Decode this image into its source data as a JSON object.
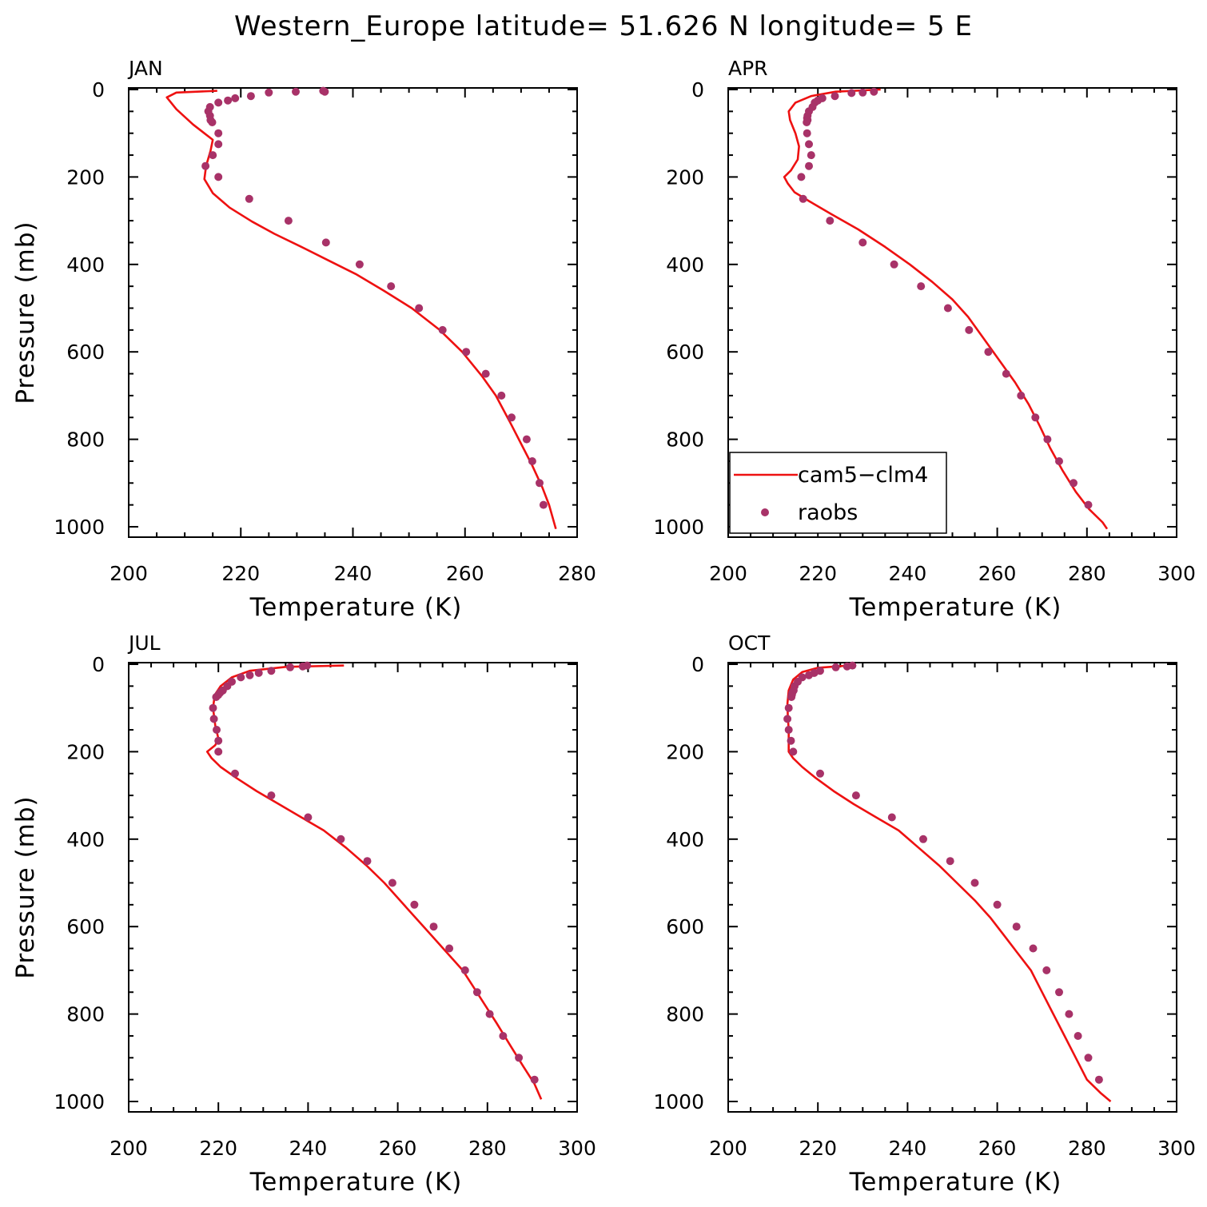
{
  "title": "Western_Europe  latitude= 51.626 N longitude= 5 E",
  "colors": {
    "model": "#ee1111",
    "obs": "#a83268",
    "axes": "#000000"
  },
  "legend": {
    "model_label": "cam5−clm4",
    "obs_label": "raobs",
    "placement": "lower-left of APR panel"
  },
  "chart_data": [
    {
      "type": "line",
      "panel": "JAN",
      "xlabel": "Temperature (K)",
      "ylabel": "Pressure (mb)",
      "xlim": [
        200,
        280
      ],
      "ylim": [
        1000,
        0
      ],
      "xticks": [
        200,
        220,
        240,
        260,
        280
      ],
      "yticks": [
        0,
        200,
        400,
        600,
        800,
        1000
      ],
      "series": [
        {
          "name": "cam5−clm4",
          "style": "line",
          "x": [
            215.8,
            208.5,
            206.8,
            208.5,
            211.5,
            215.0,
            214.6,
            213.8,
            213.5,
            215.0,
            218.0,
            222.0,
            226.0,
            230.5,
            235.5,
            240.5,
            245.5,
            250.5,
            255.5,
            259.5,
            263.0,
            265.5,
            268.0,
            270.0,
            272.0,
            273.8,
            275.0,
            276.2
          ],
          "y": [
            3,
            7,
            18,
            45,
            80,
            115,
            140,
            175,
            205,
            237,
            270,
            302,
            330,
            358,
            390,
            422,
            460,
            500,
            550,
            600,
            655,
            700,
            760,
            810,
            860,
            910,
            950,
            1005
          ]
        },
        {
          "name": "raobs",
          "style": "markers",
          "x": [
            235.0,
            234.7,
            229.8,
            225.0,
            221.8,
            219.0,
            217.7,
            216.0,
            214.5,
            214.2,
            214.5,
            214.6,
            214.9,
            216.0,
            216.0,
            215.0,
            213.7,
            216.0,
            221.5,
            228.5,
            235.2,
            241.2,
            246.8,
            251.8,
            256.0,
            260.2,
            263.7,
            266.5,
            268.3,
            271.0,
            272.0,
            273.3,
            274.0
          ],
          "y": [
            5,
            3,
            5,
            7,
            15,
            20,
            25,
            30,
            40,
            50,
            60,
            70,
            75,
            100,
            125,
            150,
            175,
            200,
            250,
            300,
            350,
            400,
            450,
            500,
            550,
            600,
            650,
            700,
            750,
            800,
            850,
            900,
            950
          ]
        }
      ]
    },
    {
      "type": "line",
      "panel": "APR",
      "xlabel": "Temperature (K)",
      "ylabel": "",
      "xlim": [
        200,
        300
      ],
      "ylim": [
        1000,
        0
      ],
      "xticks": [
        200,
        220,
        240,
        260,
        280,
        300
      ],
      "yticks": [
        0,
        200,
        400,
        600,
        800,
        1000
      ],
      "series": [
        {
          "name": "cam5−clm4",
          "style": "line",
          "x": [
            234.0,
            224.0,
            218.5,
            215.0,
            213.5,
            213.8,
            215.0,
            215.8,
            215.5,
            214.0,
            212.5,
            213.3,
            214.8,
            218.0,
            223.0,
            229.0,
            235.0,
            240.5,
            245.5,
            250.0,
            253.5,
            257.0,
            260.5,
            264.0,
            267.0,
            269.5,
            271.8,
            274.5,
            277.5,
            280.5,
            283.5,
            284.5
          ],
          "y": [
            0,
            5,
            15,
            30,
            50,
            70,
            100,
            130,
            160,
            185,
            200,
            215,
            235,
            255,
            285,
            320,
            360,
            400,
            440,
            480,
            520,
            570,
            620,
            670,
            720,
            770,
            820,
            870,
            920,
            960,
            990,
            1005
          ]
        },
        {
          "name": "raobs",
          "style": "markers",
          "x": [
            232.5,
            230.0,
            227.5,
            223.8,
            221.0,
            220.0,
            219.3,
            218.8,
            218.0,
            217.7,
            217.6,
            217.7,
            217.5,
            217.6,
            218.0,
            218.5,
            218.0,
            216.3,
            216.7,
            222.7,
            230.0,
            237.0,
            243.0,
            249.0,
            253.7,
            258.0,
            262.0,
            265.3,
            268.5,
            271.2,
            273.8,
            277.0,
            280.3
          ],
          "y": [
            5,
            7,
            8,
            15,
            20,
            25,
            30,
            40,
            50,
            60,
            65,
            70,
            75,
            100,
            125,
            150,
            175,
            200,
            250,
            300,
            350,
            400,
            450,
            500,
            550,
            600,
            650,
            700,
            750,
            800,
            850,
            900,
            950
          ]
        }
      ]
    },
    {
      "type": "line",
      "panel": "JUL",
      "xlabel": "Temperature (K)",
      "ylabel": "Pressure (mb)",
      "xlim": [
        200,
        300
      ],
      "ylim": [
        1000,
        0
      ],
      "xticks": [
        200,
        220,
        240,
        260,
        280,
        300
      ],
      "yticks": [
        0,
        200,
        400,
        600,
        800,
        1000
      ],
      "series": [
        {
          "name": "cam5−clm4",
          "style": "line",
          "x": [
            248.0,
            235.0,
            227.0,
            223.0,
            220.5,
            219.2,
            218.8,
            219.3,
            220.0,
            219.3,
            217.5,
            218.5,
            220.5,
            224.0,
            228.5,
            233.5,
            238.5,
            243.5,
            248.5,
            253.0,
            257.0,
            260.5,
            264.0,
            267.5,
            271.0,
            274.5,
            277.0,
            279.5,
            282.0,
            285.0,
            288.0,
            290.5,
            292.0
          ],
          "y": [
            3,
            6,
            15,
            30,
            50,
            70,
            100,
            140,
            170,
            185,
            200,
            215,
            235,
            260,
            290,
            320,
            350,
            380,
            420,
            460,
            500,
            540,
            580,
            620,
            660,
            700,
            740,
            780,
            820,
            870,
            920,
            960,
            995
          ]
        },
        {
          "name": "raobs",
          "style": "markers",
          "x": [
            239.8,
            238.8,
            236.0,
            231.8,
            229.0,
            227.0,
            225.0,
            223.0,
            222.0,
            221.0,
            220.4,
            220.0,
            219.5,
            218.8,
            219.0,
            219.6,
            220.0,
            220.0,
            223.7,
            231.8,
            240.0,
            247.3,
            253.2,
            258.8,
            263.7,
            268.0,
            271.5,
            275.0,
            277.7,
            280.5,
            283.5,
            287.0,
            290.5
          ],
          "y": [
            3,
            5,
            7,
            15,
            20,
            25,
            30,
            40,
            50,
            60,
            65,
            70,
            75,
            100,
            125,
            150,
            175,
            200,
            250,
            300,
            350,
            400,
            450,
            500,
            550,
            600,
            650,
            700,
            750,
            800,
            850,
            900,
            950
          ]
        }
      ]
    },
    {
      "type": "line",
      "panel": "OCT",
      "xlabel": "Temperature (K)",
      "ylabel": "",
      "xlim": [
        200,
        300
      ],
      "ylim": [
        1000,
        0
      ],
      "xticks": [
        200,
        220,
        240,
        260,
        280,
        300
      ],
      "yticks": [
        0,
        200,
        400,
        600,
        800,
        1000
      ],
      "series": [
        {
          "name": "cam5−clm4",
          "style": "line",
          "x": [
            227.0,
            220.0,
            216.5,
            214.5,
            213.5,
            213.2,
            213.3,
            213.5,
            213.5,
            213.5,
            214.5,
            216.5,
            219.5,
            223.5,
            228.0,
            233.0,
            238.0,
            242.5,
            247.0,
            251.0,
            255.0,
            258.5,
            261.5,
            264.5,
            267.5,
            270.0,
            272.5,
            275.0,
            277.5,
            280.0,
            283.0,
            285.3
          ],
          "y": [
            3,
            8,
            18,
            35,
            60,
            90,
            120,
            150,
            180,
            200,
            215,
            235,
            260,
            290,
            320,
            350,
            380,
            420,
            460,
            500,
            540,
            580,
            620,
            660,
            700,
            750,
            800,
            850,
            900,
            950,
            980,
            1000
          ]
        },
        {
          "name": "raobs",
          "style": "markers",
          "x": [
            227.7,
            226.5,
            224.0,
            220.5,
            219.2,
            218.0,
            216.5,
            215.5,
            214.8,
            214.6,
            214.3,
            214.2,
            214.1,
            213.5,
            213.2,
            213.5,
            214.0,
            214.5,
            220.5,
            228.5,
            236.5,
            243.5,
            249.5,
            255.0,
            260.0,
            264.3,
            268.0,
            271.0,
            273.8,
            276.0,
            278.0,
            280.3,
            282.7
          ],
          "y": [
            3,
            5,
            7,
            15,
            20,
            25,
            30,
            40,
            50,
            60,
            65,
            70,
            75,
            100,
            125,
            150,
            175,
            200,
            250,
            300,
            350,
            400,
            450,
            500,
            550,
            600,
            650,
            700,
            750,
            800,
            850,
            900,
            950
          ]
        }
      ]
    }
  ]
}
